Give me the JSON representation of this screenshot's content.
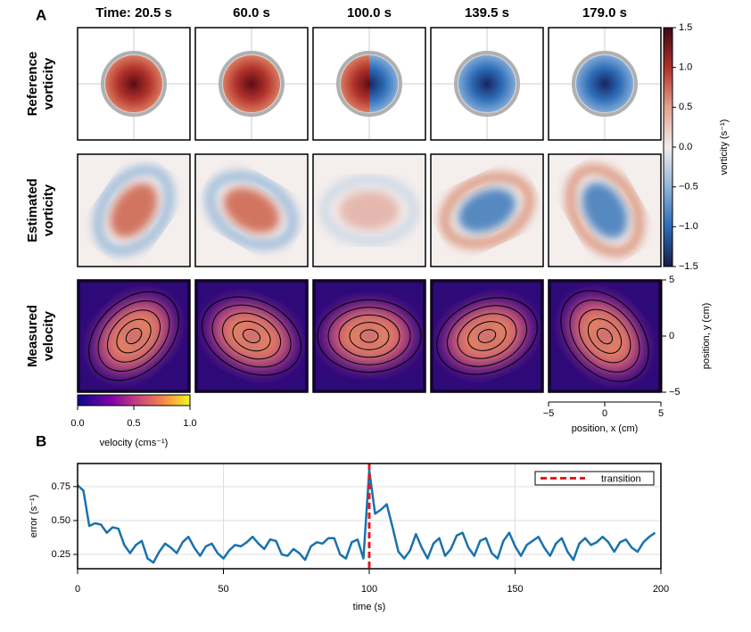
{
  "panel_a": {
    "label": "A",
    "column_titles": [
      "Time: 20.5 s",
      "60.0 s",
      "100.0 s",
      "139.5 s",
      "179.0 s"
    ],
    "row_labels": [
      [
        "Reference",
        "vorticity"
      ],
      [
        "Estimated",
        "vorticity"
      ],
      [
        "Measured",
        "velocity"
      ]
    ],
    "vorticity_colorbar": {
      "label": "vorticity (s⁻¹)",
      "lim": [
        -1.5,
        1.5
      ],
      "ticks": [
        1.5,
        {
          "value": 1,
          "label": "1.0"
        },
        0.5,
        {
          "value": 0,
          "label": "0.0"
        },
        {
          "value": -0.5,
          "label": "−0.5"
        },
        {
          "value": -1,
          "label": "−1.0"
        },
        {
          "value": -1.5,
          "label": "−1.5"
        }
      ]
    },
    "velocity_colorbar": {
      "label": "velocity (cms⁻¹)",
      "lim": [
        0,
        1
      ],
      "ticks": [
        {
          "value": 0,
          "label": "0.0"
        },
        0.5,
        {
          "value": 1,
          "label": "1.0"
        }
      ]
    },
    "position_x": {
      "label": "position, x (cm)",
      "lim": [
        -5,
        5
      ],
      "ticks": [
        {
          "value": -5,
          "label": "−5"
        },
        0,
        5
      ]
    },
    "position_y": {
      "label": "position, y (cm)",
      "lim": [
        -5,
        5
      ],
      "ticks": [
        5,
        0,
        {
          "value": -5,
          "label": "−5"
        }
      ]
    }
  },
  "chart_data": {
    "type": "line",
    "panel_label": "B",
    "xlabel": "time (s)",
    "ylabel": "error (s⁻¹)",
    "xlim": [
      0,
      200
    ],
    "xticks": [
      0,
      50,
      100,
      150,
      200
    ],
    "ylim": [
      0.145,
      0.92
    ],
    "yticks": [
      0.25,
      {
        "value": 0.5,
        "label": "0.50"
      },
      0.75
    ],
    "grid": true,
    "legend": "upper right",
    "vline": {
      "x": 100,
      "label": "transition",
      "color": "#e41a1c"
    },
    "series": [
      {
        "color": "#1a72ad",
        "x": [
          0,
          2,
          4,
          6,
          8,
          10,
          12,
          14,
          16,
          18,
          20,
          22,
          24,
          26,
          28,
          30,
          32,
          34,
          36,
          38,
          40,
          42,
          44,
          46,
          48,
          50,
          52,
          54,
          56,
          58,
          60,
          62,
          64,
          66,
          68,
          70,
          72,
          74,
          76,
          78,
          80,
          82,
          84,
          86,
          88,
          90,
          92,
          94,
          96,
          98,
          100,
          102,
          104,
          106,
          108,
          110,
          112,
          114,
          116,
          118,
          120,
          122,
          124,
          126,
          128,
          130,
          132,
          134,
          136,
          138,
          140,
          142,
          144,
          146,
          148,
          150,
          152,
          154,
          156,
          158,
          160,
          162,
          164,
          166,
          168,
          170,
          172,
          174,
          176,
          178,
          180,
          182,
          184,
          186,
          188,
          190,
          192,
          194,
          196,
          198
        ],
        "values": [
          0.76,
          0.72,
          0.46,
          0.48,
          0.47,
          0.41,
          0.45,
          0.44,
          0.32,
          0.26,
          0.32,
          0.35,
          0.22,
          0.19,
          0.27,
          0.33,
          0.3,
          0.26,
          0.34,
          0.38,
          0.3,
          0.24,
          0.31,
          0.33,
          0.26,
          0.22,
          0.28,
          0.32,
          0.31,
          0.34,
          0.38,
          0.33,
          0.29,
          0.36,
          0.35,
          0.25,
          0.24,
          0.29,
          0.26,
          0.21,
          0.31,
          0.34,
          0.33,
          0.37,
          0.37,
          0.25,
          0.22,
          0.34,
          0.36,
          0.22,
          0.87,
          0.55,
          0.58,
          0.62,
          0.45,
          0.27,
          0.22,
          0.28,
          0.4,
          0.3,
          0.22,
          0.33,
          0.37,
          0.24,
          0.29,
          0.39,
          0.41,
          0.3,
          0.24,
          0.35,
          0.37,
          0.26,
          0.22,
          0.35,
          0.41,
          0.31,
          0.24,
          0.32,
          0.35,
          0.38,
          0.3,
          0.24,
          0.33,
          0.37,
          0.27,
          0.21,
          0.33,
          0.37,
          0.32,
          0.34,
          0.38,
          0.34,
          0.27,
          0.34,
          0.36,
          0.3,
          0.27,
          0.34,
          0.38,
          0.41
        ]
      }
    ]
  }
}
